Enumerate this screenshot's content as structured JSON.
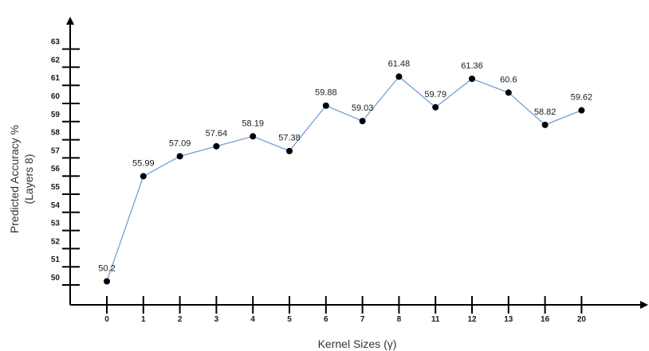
{
  "chart_data": {
    "type": "line",
    "xlabel": "Kernel Sizes (γ)",
    "ylabel_line1": "Predicted Accuracy %",
    "ylabel_line2": "(Layers 8)",
    "categories": [
      "0",
      "1",
      "2",
      "3",
      "4",
      "5",
      "6",
      "7",
      "8",
      "11",
      "12",
      "13",
      "16",
      "20"
    ],
    "values": [
      50.2,
      55.99,
      57.09,
      57.64,
      58.19,
      57.38,
      59.88,
      59.03,
      61.48,
      59.79,
      61.36,
      60.6,
      58.82,
      59.62
    ],
    "point_labels": [
      "50.2",
      "55.99",
      "57.09",
      "57.64",
      "58.19",
      "57.38",
      "59.88",
      "59.03",
      "61.48",
      "59.79",
      "61.36",
      "60.6",
      "58.82",
      "59.62"
    ],
    "highlighted_points": [
      "61.48",
      "61.36"
    ],
    "yticks": [
      "50",
      "51",
      "52",
      "53",
      "54",
      "55",
      "56",
      "57",
      "58",
      "59",
      "60",
      "61",
      "62",
      "63"
    ],
    "ylim": [
      49,
      64
    ],
    "grid": false,
    "colors": {
      "line": "#6f9fd8",
      "marker": "#000000",
      "highlight": "#e03030",
      "axis": "#000000",
      "text": "#1a1a1a"
    }
  }
}
